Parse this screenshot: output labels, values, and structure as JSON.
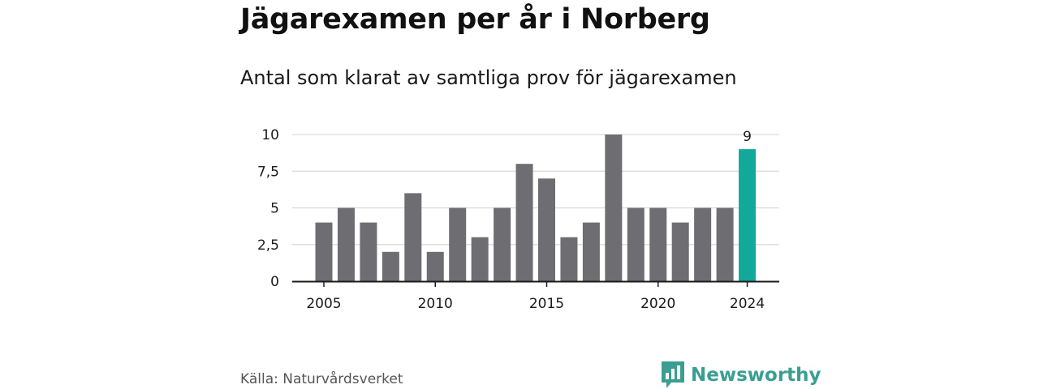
{
  "header": {
    "title": "Jägarexamen per år i Norberg",
    "subtitle": "Antal som klarat av samtliga prov för jägarexamen"
  },
  "footer": {
    "source": "Källa: Naturvårdsverket",
    "brand": "Newsworthy",
    "brand_icon": "bar-chart-logo-icon",
    "brand_color": "#3a9e92"
  },
  "chart_data": {
    "type": "bar",
    "categories": [
      2005,
      2006,
      2007,
      2008,
      2009,
      2010,
      2011,
      2012,
      2013,
      2014,
      2015,
      2016,
      2017,
      2018,
      2019,
      2020,
      2021,
      2022,
      2023,
      2024
    ],
    "values": [
      4,
      5,
      4,
      2,
      6,
      2,
      5,
      3,
      5,
      8,
      7,
      3,
      4,
      10,
      5,
      5,
      4,
      5,
      5,
      9
    ],
    "ylim": [
      0,
      10
    ],
    "yticks": [
      0,
      2.5,
      5,
      7.5,
      10
    ],
    "ytick_labels": [
      "0",
      "2,5",
      "5",
      "7,5",
      "10"
    ],
    "xtick_labels": [
      "2005",
      "2010",
      "2015",
      "2020",
      "2024"
    ],
    "xtick_values": [
      2005,
      2010,
      2015,
      2020,
      2024
    ],
    "highlight": {
      "category": 2024,
      "label": "9"
    },
    "colors": {
      "bar": "#6e6d72",
      "highlight": "#12a89a",
      "grid": "#d9d9d9",
      "axis": "#1a1a1a"
    },
    "grid": true
  }
}
